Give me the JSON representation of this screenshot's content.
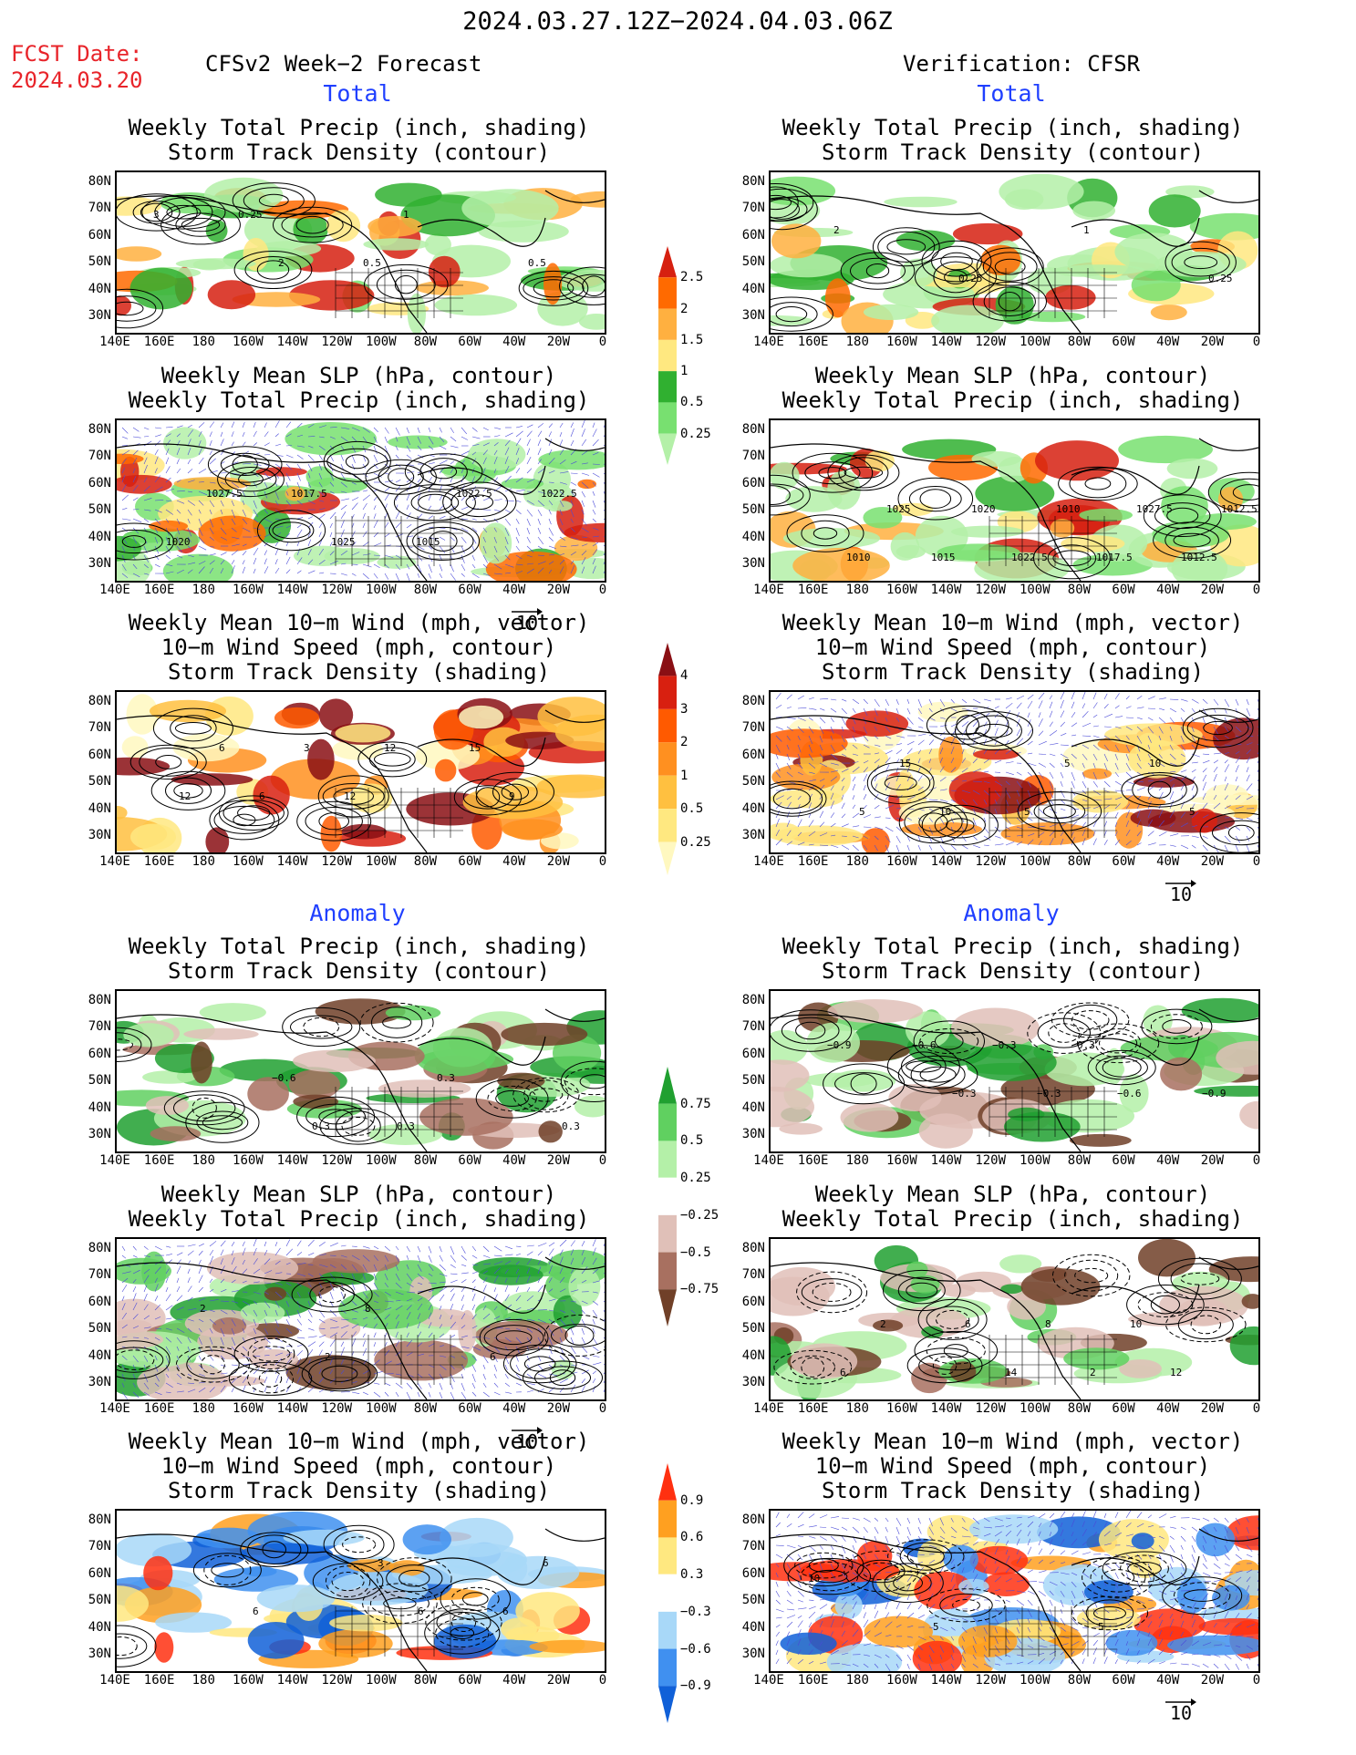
{
  "header": {
    "date_range": "2024.03.27.12Z−2024.04.03.06Z",
    "fcst_label": "FCST Date:",
    "fcst_date": "2024.03.20",
    "left_title": "CFSv2 Week−2 Forecast",
    "right_title": "Verification: CFSR"
  },
  "sections": {
    "total": "Total",
    "anomaly": "Anomaly"
  },
  "panel_titles": {
    "precip_storm": [
      "Weekly Total Precip (inch, shading)",
      "Storm Track Density (contour)"
    ],
    "slp_precip": [
      "Weekly Mean SLP (hPa, contour)",
      "Weekly Total Precip (inch, shading)"
    ],
    "wind_storm": [
      "Weekly Mean 10−m Wind (mph, vector)",
      "10−m Wind Speed (mph, contour)",
      "Storm Track Density (shading)"
    ]
  },
  "axes": {
    "lat_ticks": [
      "80N",
      "70N",
      "60N",
      "50N",
      "40N",
      "30N"
    ],
    "lon_ticks": [
      "140E",
      "160E",
      "180",
      "160W",
      "140W",
      "120W",
      "100W",
      "80W",
      "60W",
      "40W",
      "20W",
      "0"
    ]
  },
  "vector_reference": "10",
  "colorbars": {
    "precip_total": {
      "colors": [
        "#b4f0a8",
        "#78e070",
        "#30b030",
        "#ffe880",
        "#ffb040",
        "#ff6a00",
        "#d62010"
      ],
      "labels": [
        "0.25",
        "0.5",
        "1",
        "1.5",
        "2",
        "2.5"
      ]
    },
    "storm_total": {
      "colors": [
        "#fff8c0",
        "#ffe880",
        "#ffc040",
        "#ff9020",
        "#ff5a00",
        "#d82010",
        "#8a0f14"
      ],
      "labels": [
        "0.25",
        "0.5",
        "1",
        "2",
        "3",
        "4"
      ]
    },
    "precip_anom": {
      "colors": [
        "#704028",
        "#a87060",
        "#e0c0b8",
        "#ffffff",
        "#b4f0a8",
        "#60d060",
        "#20a030"
      ],
      "labels": [
        "−0.75",
        "−0.5",
        "−0.25",
        "0.25",
        "0.5",
        "0.75"
      ]
    },
    "storm_anom": {
      "colors": [
        "#1060d8",
        "#4090f0",
        "#a8d8f8",
        "#ffffff",
        "#ffe880",
        "#ffa020",
        "#ff3010"
      ],
      "labels": [
        "−0.9",
        "−0.6",
        "−0.3",
        "0.3",
        "0.6",
        "0.9"
      ]
    }
  },
  "contour_labels": {
    "p1": [
      "3",
      "2",
      "1",
      "0.5",
      "0.25",
      "0.5"
    ],
    "p2": [
      "2",
      "0.25",
      "1",
      "0.25"
    ],
    "p3": [
      "1027.5",
      "1025",
      "1022.5",
      "1020",
      "1017.5",
      "1015",
      "1022.5"
    ],
    "p4": [
      "1025",
      "1022.5",
      "1027.5",
      "1010",
      "1020",
      "1017.5",
      "1012.5",
      "1015",
      "1010",
      "1012.5"
    ],
    "p5": [
      "6",
      "12",
      "9",
      "6",
      "12",
      "15",
      "12",
      "3"
    ],
    "p6": [
      "10",
      "5",
      "5",
      "15",
      "5",
      "10",
      "5"
    ],
    "p7": [
      "0.3",
      "0.3",
      "0.3",
      "−0.6",
      "0.3"
    ],
    "p8": [
      "−0.3",
      "−0.6",
      "−0.9",
      "−0.3",
      "0.3",
      "−0.9",
      "−0.6",
      "−0.3"
    ],
    "p9": [
      "8",
      "6",
      "2",
      "2"
    ],
    "p10": [
      "8",
      "12",
      "2",
      "14",
      "10",
      "6",
      "6",
      "2"
    ],
    "p11": [
      "6",
      "6",
      "6",
      "3",
      "6"
    ],
    "p12": [
      "5",
      "10",
      "5"
    ]
  }
}
